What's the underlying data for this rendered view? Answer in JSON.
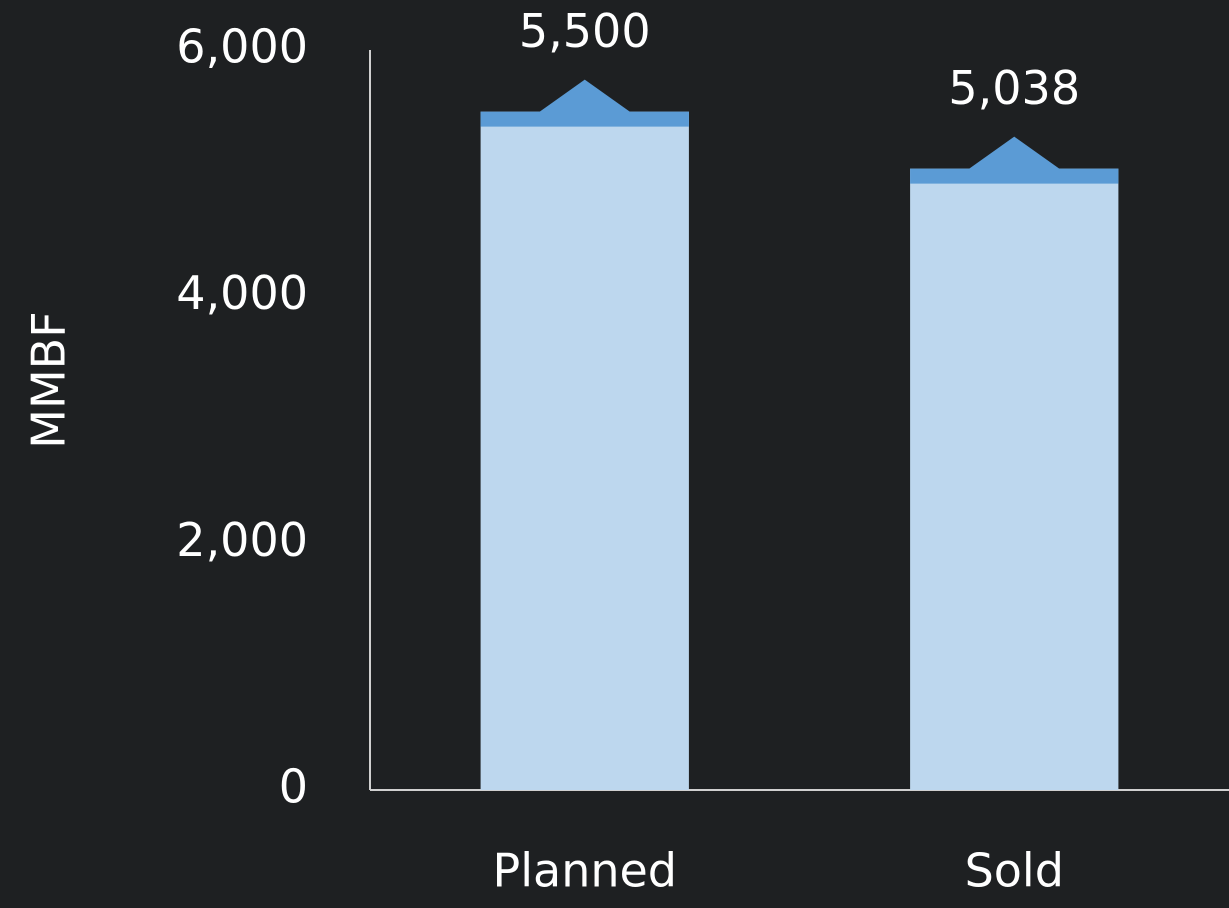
{
  "chart_data": {
    "type": "bar",
    "ylabel": "MMBF",
    "categories": [
      "Planned",
      "Sold"
    ],
    "values": [
      5500,
      5038
    ],
    "value_labels": [
      "5,500",
      "5,038"
    ],
    "color": "#bdd7ee",
    "cap_color": "#5b9bd5",
    "ylim": [
      0,
      6000
    ],
    "yticks": [
      0,
      {
        "value": 2000,
        "label": "2,000"
      },
      {
        "value": 4000,
        "label": "4,000"
      },
      {
        "value": 6000,
        "label": "6,000"
      }
    ],
    "grid": false
  }
}
